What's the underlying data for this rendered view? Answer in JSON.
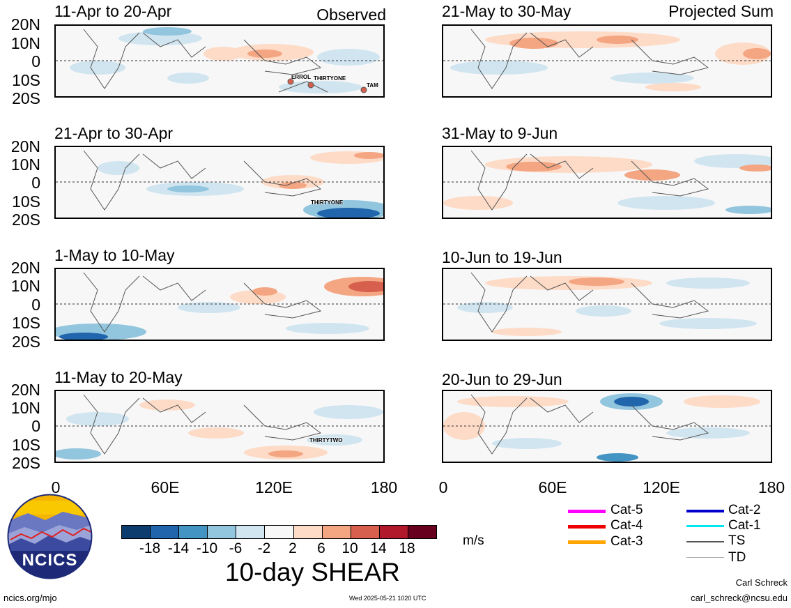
{
  "panels_left": [
    {
      "title": "11-Apr to 20-Apr",
      "label": "Observed"
    },
    {
      "title": "21-Apr to 30-Apr",
      "label": ""
    },
    {
      "title": "1-May to 10-May",
      "label": ""
    },
    {
      "title": "11-May to 20-May",
      "label": ""
    }
  ],
  "panels_right": [
    {
      "title": "21-May to 30-May",
      "label": "Projected Sum"
    },
    {
      "title": "31-May to 9-Jun",
      "label": ""
    },
    {
      "title": "10-Jun to 19-Jun",
      "label": ""
    },
    {
      "title": "20-Jun to 29-Jun",
      "label": ""
    }
  ],
  "lat_labels": [
    "20N",
    "10N",
    "0",
    "10S",
    "20S"
  ],
  "lon_labels": [
    "0",
    "60E",
    "120E",
    "180"
  ],
  "storms": {
    "p0_errol": "ERROL",
    "p0_thirtyone": "THIRTYONE",
    "p0_tam": "TAM",
    "p1_thirtyone": "THIRTYONE",
    "p3_thirtytwo": "THIRTYTWO"
  },
  "colorbar": {
    "ticks": [
      "-18",
      "-14",
      "-10",
      "-6",
      "-2",
      "2",
      "6",
      "10",
      "14",
      "18"
    ],
    "colors": [
      "#0d3d6e",
      "#2166ac",
      "#4393c3",
      "#92c5de",
      "#d1e5f0",
      "#f7f7f7",
      "#fddbc7",
      "#f4a582",
      "#d6604d",
      "#b2182b",
      "#67001f"
    ],
    "units": "m/s",
    "title": "10-day SHEAR"
  },
  "legend": [
    {
      "label": "Cat-5",
      "color": "#ff00ff"
    },
    {
      "label": "Cat-4",
      "color": "#ee0000"
    },
    {
      "label": "Cat-3",
      "color": "#ffa500"
    },
    {
      "label": "Cat-2",
      "color": "#0000cc"
    },
    {
      "label": "Cat-1",
      "color": "#00e5ee"
    },
    {
      "label": "TS",
      "color": "#555555"
    },
    {
      "label": "TD",
      "color": "#aaaaaa"
    }
  ],
  "logo_text": "NCICS",
  "footer": {
    "url": "ncics.org/mjo",
    "timestamp": "Wed 2025-05-21 1020 UTC",
    "author": "Carl Schreck",
    "email": "carl_schreck@ncsu.edu"
  }
}
